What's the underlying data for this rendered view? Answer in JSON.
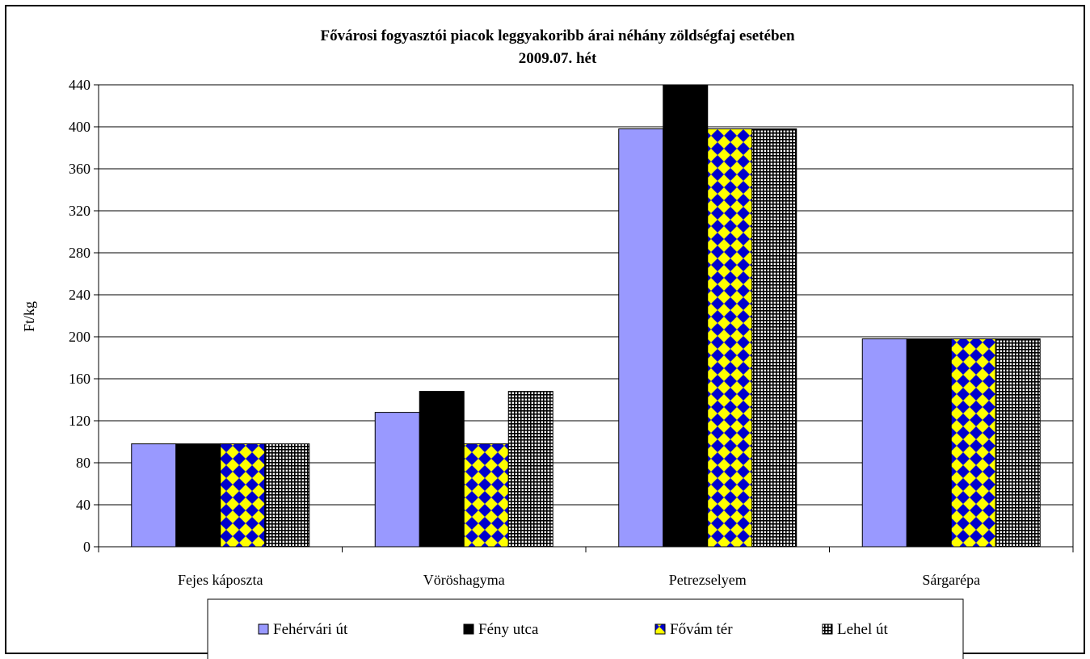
{
  "chart_data": {
    "type": "bar",
    "title": "Fővárosi fogyasztói piacok leggyakoribb árai néhány zöldségfaj esetében",
    "subtitle": "2009.07. hét",
    "ylabel": "Ft/kg",
    "xlabel": "",
    "ylim": [
      0,
      440
    ],
    "yticks": [
      0,
      40,
      80,
      120,
      160,
      200,
      240,
      280,
      320,
      360,
      400,
      440
    ],
    "grid": true,
    "legend_position": "bottom",
    "categories": [
      "Fejes káposzta",
      "Vöröshagyma",
      "Petrezselyem",
      "Sárgarépa"
    ],
    "series": [
      {
        "name": "Fehérvári út",
        "values": [
          98,
          128,
          398,
          198
        ],
        "color": "#9999ff",
        "pattern": "solid"
      },
      {
        "name": "Fény utca",
        "values": [
          98,
          148,
          440,
          198
        ],
        "color": "#000000",
        "pattern": "solid"
      },
      {
        "name": "Fővám tér",
        "values": [
          98,
          98,
          398,
          198
        ],
        "color": "#0000cc",
        "pattern": "diamond-yellow"
      },
      {
        "name": "Lehel út",
        "values": [
          98,
          148,
          398,
          198
        ],
        "color": "#000000",
        "pattern": "grid-white"
      }
    ]
  }
}
